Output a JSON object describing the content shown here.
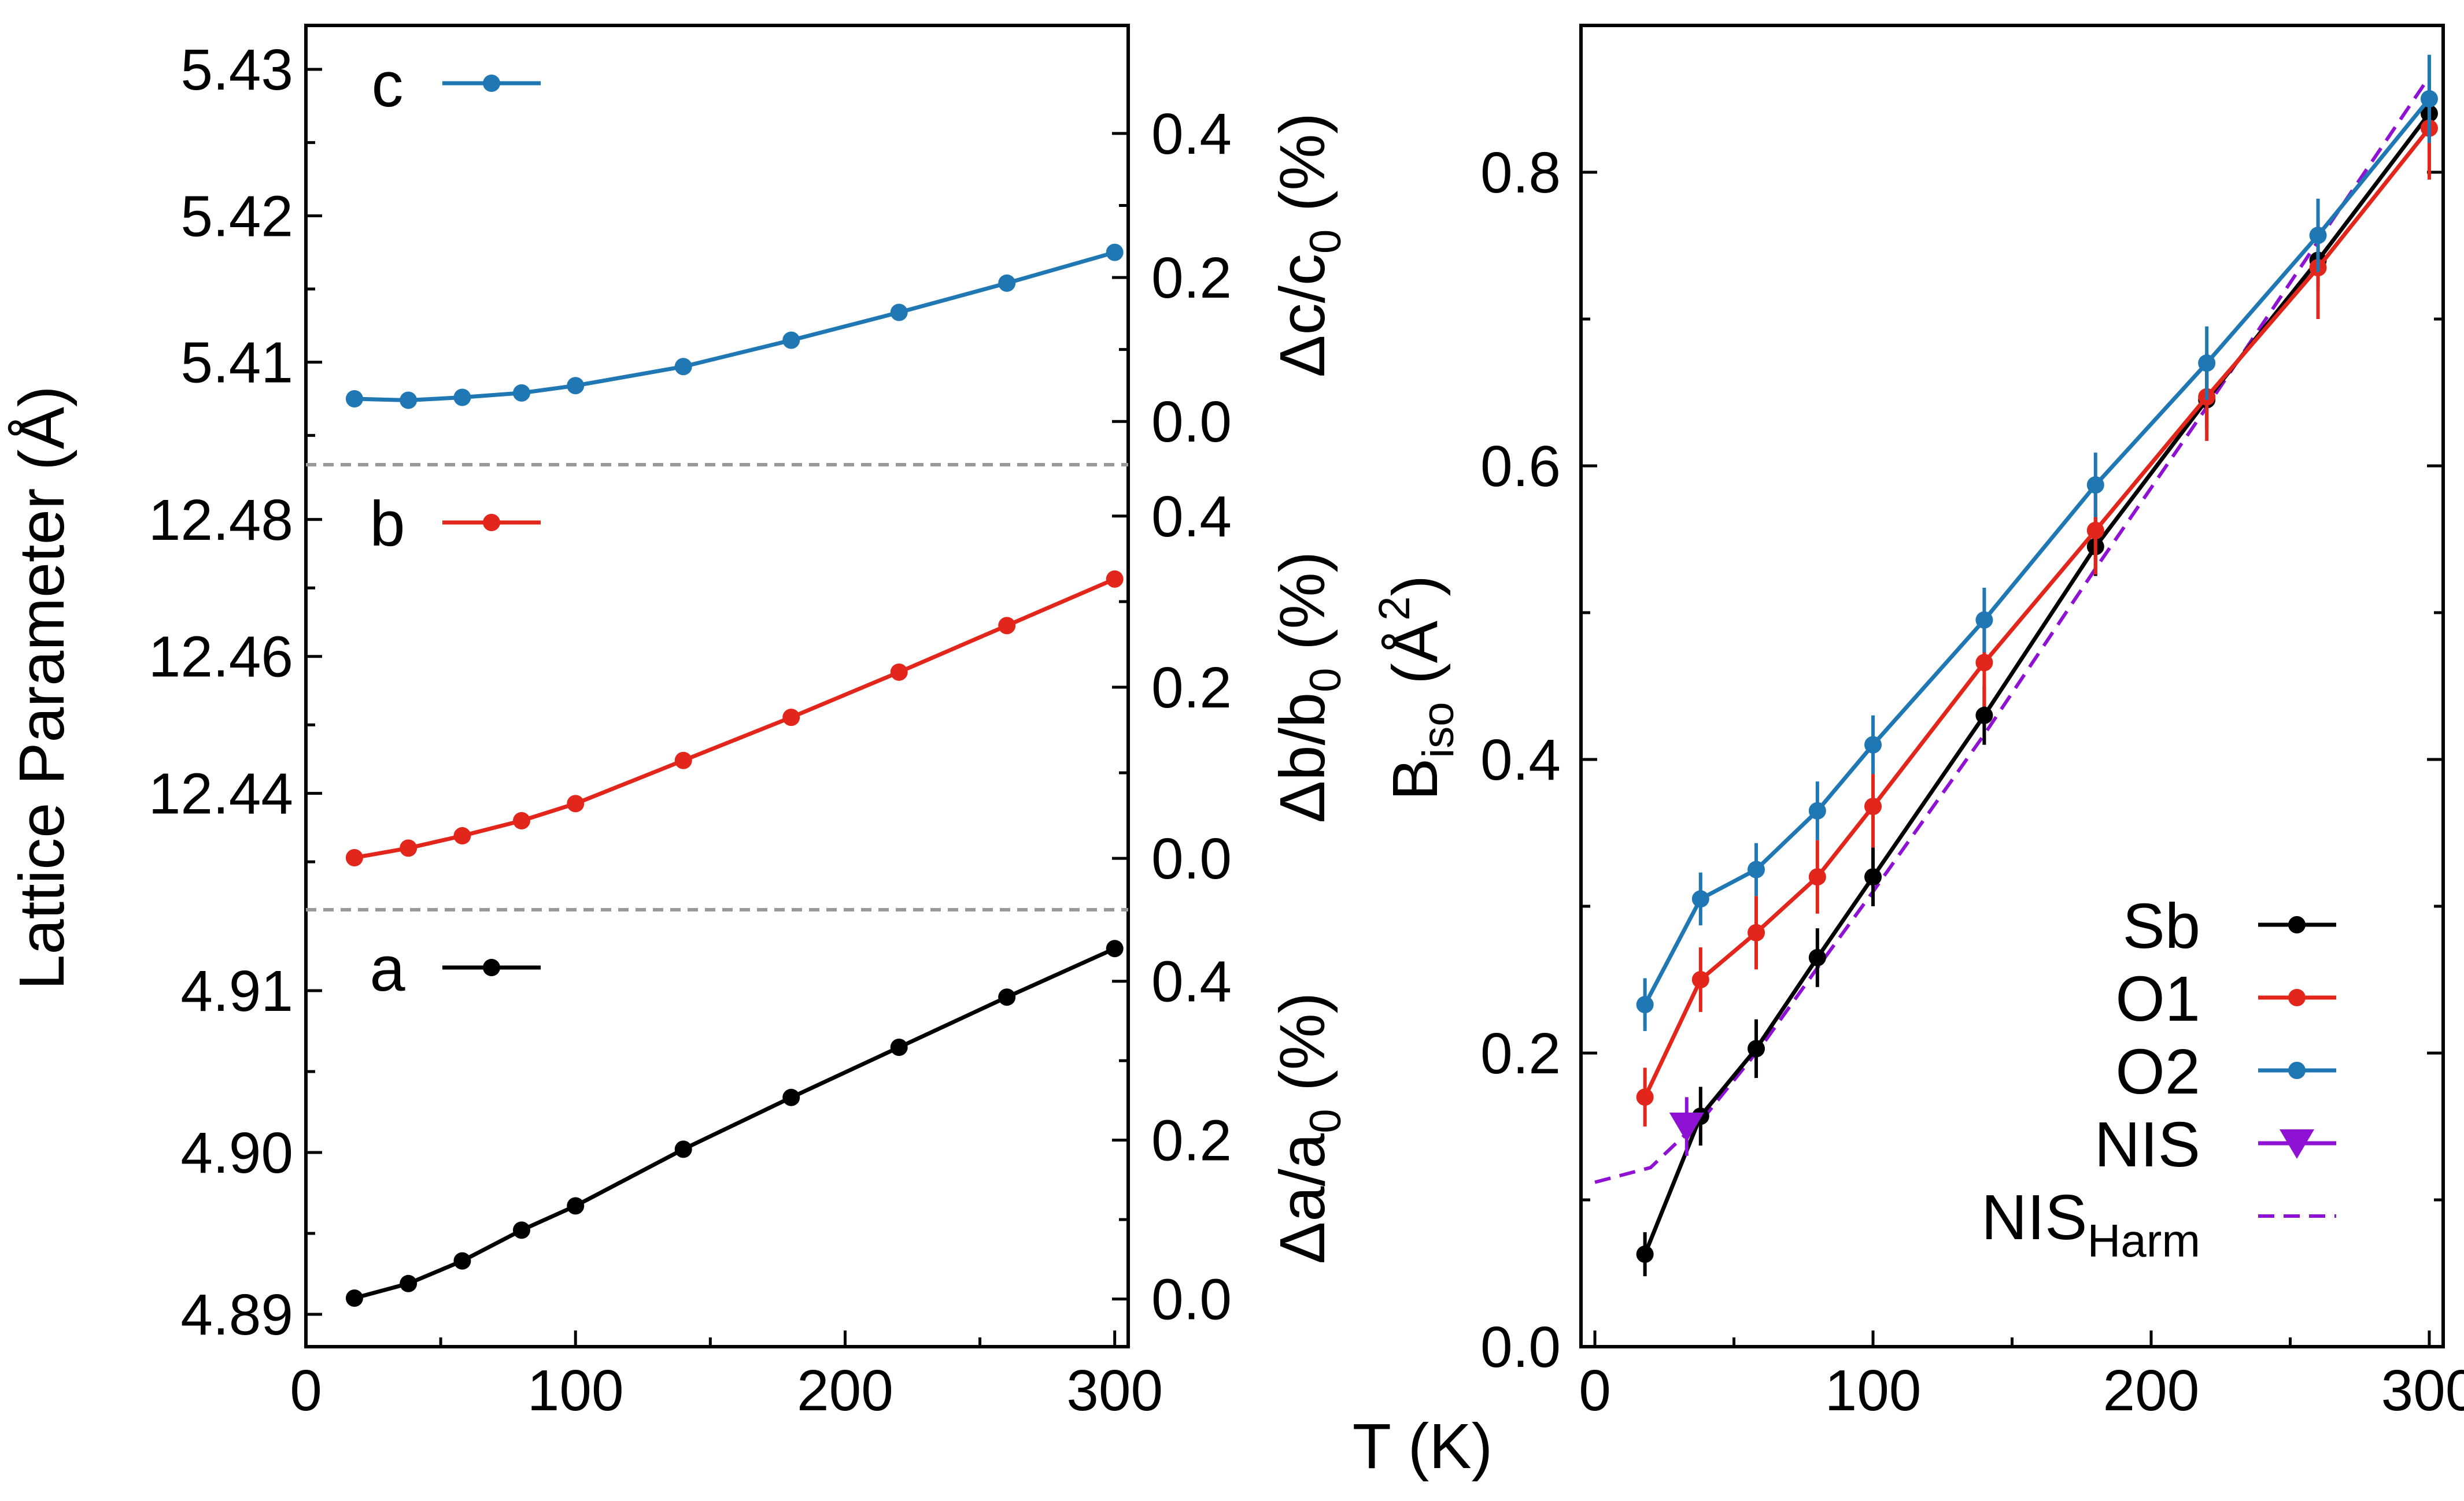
{
  "figure": {
    "shared_xlabel": "T (K)",
    "shared_xlabel_parts": {
      "main": "T (K)"
    }
  },
  "chart_data": [
    {
      "type": "line",
      "panel": "left",
      "title": "",
      "ylabel": "Lattice Parameter (Å)",
      "xlabel": "T (K)",
      "xlim": [
        0,
        305
      ],
      "x_ticks": [
        0,
        100,
        200,
        300
      ],
      "x": [
        18,
        38,
        58,
        80,
        100,
        140,
        180,
        220,
        260,
        300
      ],
      "grid": false,
      "legend_position": "upper-left of each sub-panel",
      "subpanels": [
        {
          "name": "c",
          "legend_label": "c",
          "color": "#1f77b4",
          "left_ylim": [
            5.403,
            5.433
          ],
          "left_ticks": [
            "5.41",
            "5.42",
            "5.43"
          ],
          "left_tick_values": [
            5.41,
            5.42,
            5.43
          ],
          "right_label": "Δc/c0 (%)",
          "right_label_main": "Δc/c",
          "right_label_sub": "0",
          "right_label_tail": " (%)",
          "right_ylim": [
            -0.06,
            0.55
          ],
          "right_ticks": [
            "0.0",
            "0.2",
            "0.4"
          ],
          "right_tick_values": [
            0.0,
            0.2,
            0.4
          ],
          "values": [
            5.4075,
            5.4074,
            5.4076,
            5.4079,
            5.4084,
            5.4097,
            5.4115,
            5.4134,
            5.4154,
            5.4175
          ]
        },
        {
          "name": "b",
          "legend_label": "b",
          "color": "#e3261b",
          "left_ylim": [
            12.423,
            12.488
          ],
          "left_ticks": [
            "12.44",
            "12.46",
            "12.48"
          ],
          "left_tick_values": [
            12.44,
            12.46,
            12.48
          ],
          "right_label": "Δb/b0 (%)",
          "right_label_main": "Δb/b",
          "right_label_sub": "0",
          "right_label_tail": " (%)",
          "right_ylim": [
            -0.06,
            0.46
          ],
          "right_ticks": [
            "0.0",
            "0.2",
            "0.4"
          ],
          "right_tick_values": [
            0.0,
            0.2,
            0.4
          ],
          "values": [
            12.4306,
            12.432,
            12.4338,
            12.436,
            12.4385,
            12.4448,
            12.4511,
            12.4577,
            12.4645,
            12.4713
          ]
        },
        {
          "name": "a",
          "legend_label": "a",
          "color": "#000000",
          "left_ylim": [
            4.888,
            4.915
          ],
          "left_ticks": [
            "4.89",
            "4.90",
            "4.91"
          ],
          "left_tick_values": [
            4.89,
            4.9,
            4.91
          ],
          "right_label": "Δa/a0 (%)",
          "right_label_main": "Δa/a",
          "right_label_sub": "0",
          "right_label_tail": " (%)",
          "right_ylim": [
            -0.06,
            0.49
          ],
          "right_ticks": [
            "0.0",
            "0.2",
            "0.4"
          ],
          "right_tick_values": [
            0.0,
            0.2,
            0.4
          ],
          "values": [
            4.891,
            4.8919,
            4.8933,
            4.8952,
            4.8967,
            4.9002,
            4.9034,
            4.9065,
            4.9096,
            4.9126
          ]
        }
      ]
    },
    {
      "type": "line",
      "panel": "right",
      "title": "",
      "ylabel": "Biso (Å2)",
      "ylabel_main": "B",
      "ylabel_sub": "iso",
      "ylabel_mid": " (Å",
      "ylabel_sup": "2",
      "ylabel_tail": ")",
      "xlabel": "T (K)",
      "xlim": [
        -5,
        305
      ],
      "ylim": [
        0.0,
        0.9
      ],
      "x_ticks": [
        0,
        100,
        200,
        300
      ],
      "y_ticks": [
        "0.0",
        "0.2",
        "0.4",
        "0.6",
        "0.8"
      ],
      "y_tick_values": [
        0.0,
        0.2,
        0.4,
        0.6,
        0.8
      ],
      "grid": false,
      "legend_position": "lower-right",
      "x": [
        18,
        38,
        58,
        80,
        100,
        140,
        180,
        220,
        260,
        300
      ],
      "series": [
        {
          "name": "Sb",
          "color": "#000000",
          "values": [
            0.063,
            0.157,
            0.203,
            0.265,
            0.32,
            0.43,
            0.545,
            0.645,
            0.74,
            0.84
          ],
          "errors": [
            0.015,
            0.02,
            0.02,
            0.02,
            0.02,
            0.02,
            0.02,
            0.02,
            0.02,
            0.02
          ]
        },
        {
          "name": "O1",
          "color": "#e3261b",
          "values": [
            0.17,
            0.25,
            0.282,
            0.32,
            0.368,
            0.466,
            0.556,
            0.647,
            0.735,
            0.83
          ],
          "errors": [
            0.02,
            0.022,
            0.025,
            0.025,
            0.028,
            0.03,
            0.03,
            0.03,
            0.035,
            0.035
          ]
        },
        {
          "name": "O2",
          "color": "#1f77b4",
          "values": [
            0.233,
            0.305,
            0.325,
            0.365,
            0.41,
            0.495,
            0.587,
            0.67,
            0.757,
            0.85
          ],
          "errors": [
            0.018,
            0.018,
            0.018,
            0.02,
            0.02,
            0.022,
            0.022,
            0.025,
            0.025,
            0.03
          ]
        },
        {
          "name": "NIS",
          "color": "#8f12d4",
          "marker": "triangle-down",
          "x": [
            33
          ],
          "values": [
            0.15
          ],
          "errors": [
            0.02
          ]
        },
        {
          "name": "NISHarm",
          "label_main": "NIS",
          "label_sub": "Harm",
          "color": "#8f12d4",
          "style": "dashed",
          "x": [
            0,
            20,
            40,
            60,
            80,
            100,
            140,
            180,
            220,
            260,
            300
          ],
          "values": [
            0.112,
            0.122,
            0.158,
            0.205,
            0.258,
            0.31,
            0.417,
            0.53,
            0.64,
            0.753,
            0.865
          ]
        }
      ]
    }
  ]
}
